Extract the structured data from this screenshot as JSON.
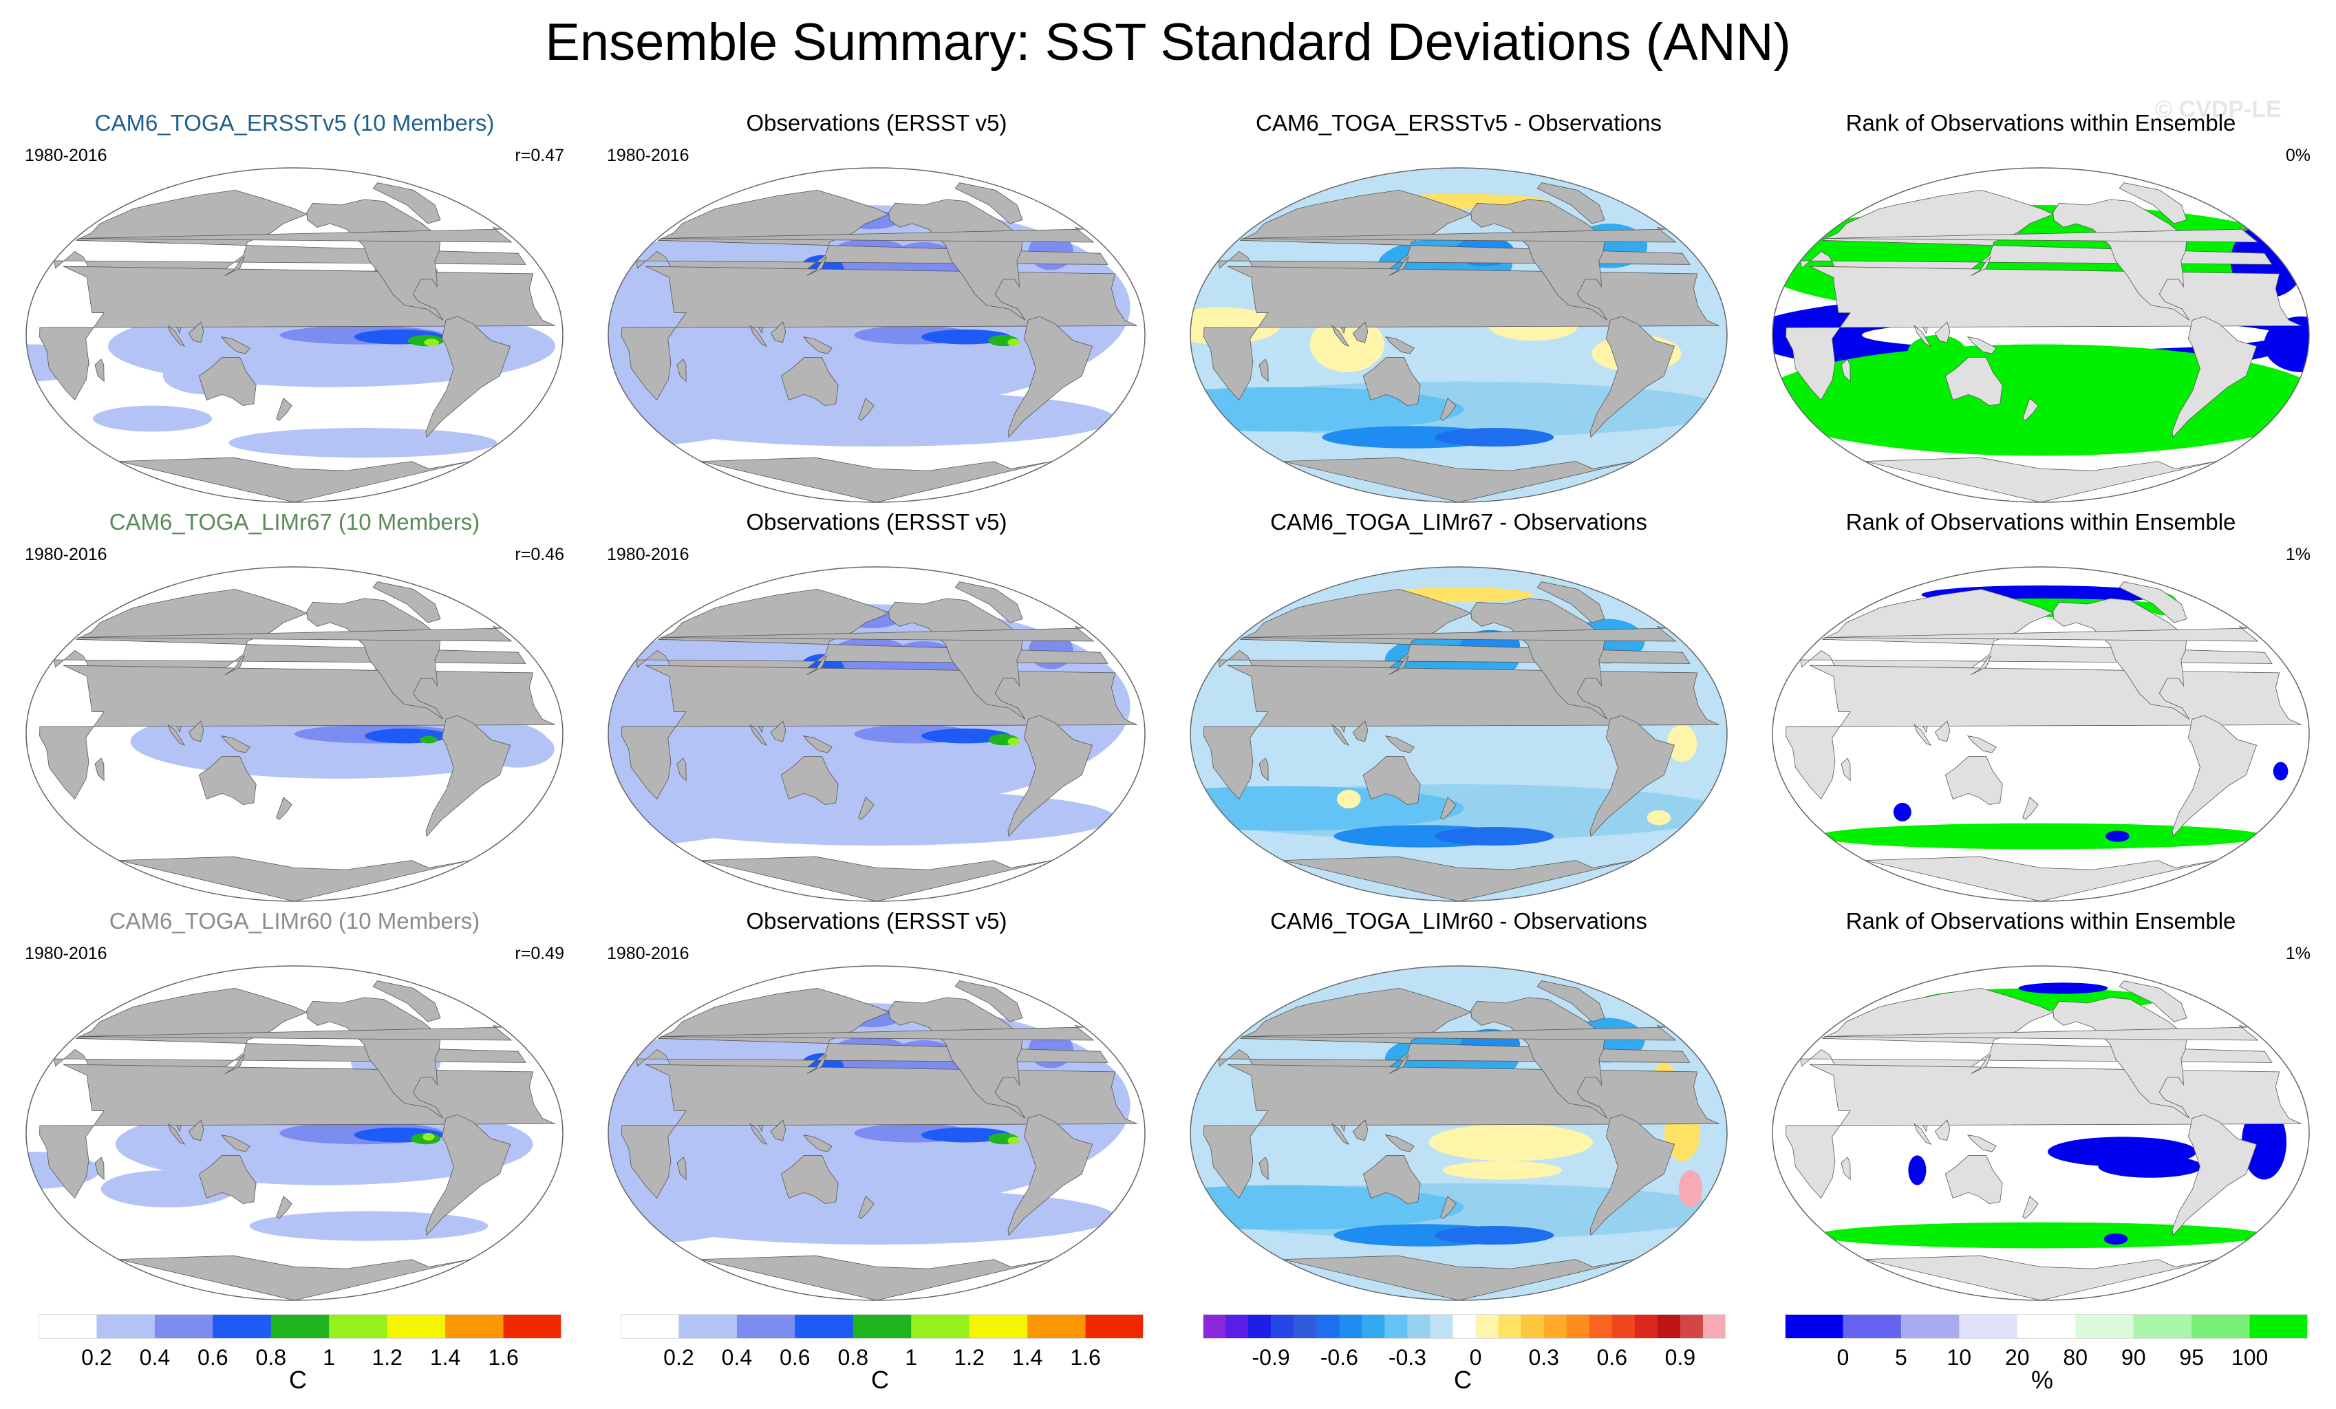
{
  "figure": {
    "title": "Ensemble Summary: SST Standard Deviations (ANN)",
    "watermark": "© CVDP-LE"
  },
  "colors": {
    "ocean_background": "#ffffff",
    "land": "#b5b5b5",
    "land_light": "#e0e0e0",
    "row_title_colors": [
      "#1f5f8b",
      "#5a8a5a",
      "#8c8c8c"
    ]
  },
  "rows": [
    {
      "panels": [
        {
          "type": "model",
          "title": "CAM6_TOGA_ERSSTv5 (10 Members)",
          "years": "1980-2016",
          "stat": "r=0.47"
        },
        {
          "type": "obs",
          "title": "Observations (ERSST v5)",
          "years": "1980-2016",
          "stat": ""
        },
        {
          "type": "diff",
          "title": "CAM6_TOGA_ERSSTv5 - Observations",
          "years": "",
          "stat": ""
        },
        {
          "type": "rank",
          "title": "Rank of Observations within Ensemble",
          "years": "",
          "stat": "0%"
        }
      ]
    },
    {
      "panels": [
        {
          "type": "model",
          "title": "CAM6_TOGA_LIMr67 (10 Members)",
          "years": "1980-2016",
          "stat": "r=0.46"
        },
        {
          "type": "obs",
          "title": "Observations (ERSST v5)",
          "years": "1980-2016",
          "stat": ""
        },
        {
          "type": "diff",
          "title": "CAM6_TOGA_LIMr67 - Observations",
          "years": "",
          "stat": ""
        },
        {
          "type": "rank",
          "title": "Rank of Observations within Ensemble",
          "years": "",
          "stat": "1%"
        }
      ]
    },
    {
      "panels": [
        {
          "type": "model",
          "title": "CAM6_TOGA_LIMr60 (10 Members)",
          "years": "1980-2016",
          "stat": "r=0.49"
        },
        {
          "type": "obs",
          "title": "Observations (ERSST v5)",
          "years": "1980-2016",
          "stat": ""
        },
        {
          "type": "diff",
          "title": "CAM6_TOGA_LIMr60 - Observations",
          "years": "",
          "stat": ""
        },
        {
          "type": "rank",
          "title": "Rank of Observations within Ensemble",
          "years": "",
          "stat": "1%"
        }
      ]
    }
  ],
  "chart_data": [
    {
      "type": "heatmap",
      "name": "sst_stddev_colorbar",
      "unit": "C",
      "levels": [
        0.2,
        0.4,
        0.6,
        0.8,
        1,
        1.2,
        1.4,
        1.6
      ],
      "tick_labels": [
        "0.2",
        "0.4",
        "0.6",
        "0.8",
        "1",
        "1.2",
        "1.4",
        "1.6"
      ],
      "colors": [
        "#ffffff",
        "#b4c3f5",
        "#7c8cf0",
        "#1e5af5",
        "#1eb41e",
        "#96f01e",
        "#f5f500",
        "#fa9600",
        "#f02800"
      ]
    },
    {
      "type": "heatmap",
      "name": "difference_colorbar",
      "unit": "C",
      "levels": [
        -1.1,
        -1.0,
        -0.9,
        -0.8,
        -0.7,
        -0.6,
        -0.5,
        -0.4,
        -0.3,
        -0.2,
        -0.1,
        0,
        0.1,
        0.2,
        0.3,
        0.4,
        0.5,
        0.6,
        0.7,
        0.8,
        0.9,
        1.0,
        1.1
      ],
      "tick_labels": [
        "-0.9",
        "-0.6",
        "-0.3",
        "0",
        "0.3",
        "0.6",
        "0.9"
      ],
      "tick_values": [
        -0.9,
        -0.6,
        -0.3,
        0,
        0.3,
        0.6,
        0.9
      ],
      "colors": [
        "#8c28dc",
        "#5a1ee6",
        "#1e1ee6",
        "#2846e6",
        "#325adc",
        "#1e6ef0",
        "#1e8cf0",
        "#32aaf0",
        "#64c3f5",
        "#96d2f0",
        "#bee1f5",
        "#ffffff",
        "#fff5aa",
        "#ffe164",
        "#ffc83c",
        "#ffaa28",
        "#ff8c1e",
        "#fa641e",
        "#f0461e",
        "#dc281e",
        "#be1414",
        "#d24646",
        "#f5aab4"
      ]
    },
    {
      "type": "heatmap",
      "name": "rank_colorbar",
      "unit": "%",
      "levels": [
        0,
        5,
        10,
        20,
        80,
        90,
        95,
        100
      ],
      "tick_labels": [
        "0",
        "5",
        "10",
        "20",
        "80",
        "90",
        "95",
        "100"
      ],
      "colors": [
        "#0000f0",
        "#6464f0",
        "#aaaaf0",
        "#e1e1fa",
        "#ffffff",
        "#dcfadc",
        "#aaf5aa",
        "#78f078",
        "#00f000"
      ]
    }
  ]
}
